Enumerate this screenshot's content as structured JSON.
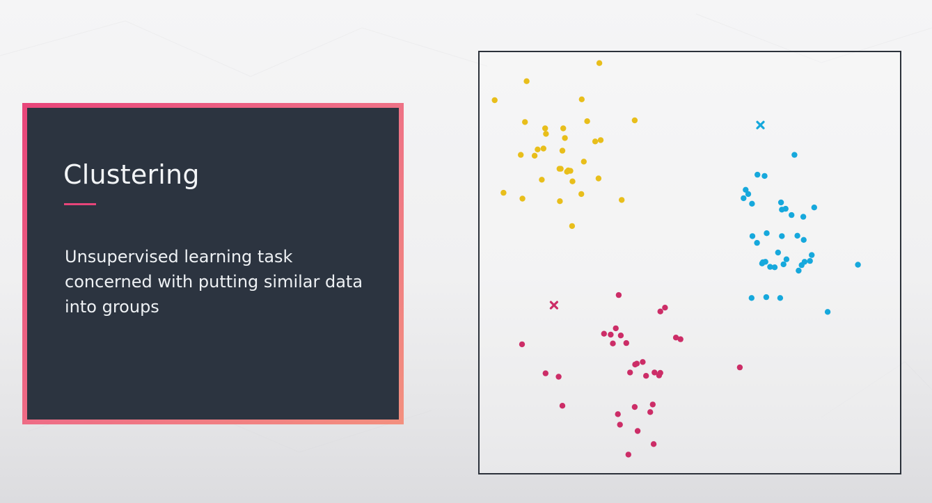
{
  "slide": {
    "title": "Clustering",
    "body": "Unsupervised learning task concerned with putting similar data into groups"
  },
  "colors": {
    "card_background": "#2c3440",
    "accent_pink": "#e7457a",
    "cluster_yellow": "#e8be1b",
    "cluster_blue": "#16a8dc",
    "cluster_magenta": "#cc2d67",
    "plot_border": "#2b313a"
  },
  "chart_data": {
    "type": "scatter",
    "title": "",
    "xlabel": "",
    "ylabel": "",
    "grid": false,
    "legend": "none",
    "xlim": [
      0,
      100
    ],
    "ylim": [
      0,
      100
    ],
    "series": [
      {
        "color": "#e8be1b",
        "x": [
          3.6,
          11.2,
          28.5,
          24.3,
          10.8,
          25.6,
          36.9,
          15.6,
          19.9,
          15.8,
          20.3,
          27.5,
          28.8,
          9.8,
          13.8,
          15.2,
          19.7,
          24.8,
          13.1,
          19.0,
          21.6,
          19.3,
          20.8,
          14.8,
          22.1,
          28.3,
          24.2,
          21.1,
          5.7,
          10.2,
          19.1,
          33.8,
          22.0
        ],
        "y": [
          88.6,
          93.1,
          97.4,
          88.8,
          83.4,
          83.6,
          83.8,
          81.9,
          81.9,
          80.6,
          79.6,
          78.8,
          79.1,
          75.6,
          76.9,
          77.1,
          76.6,
          74.0,
          75.4,
          72.3,
          71.8,
          72.3,
          71.6,
          69.7,
          69.3,
          70.0,
          66.3,
          71.9,
          66.6,
          65.2,
          64.6,
          64.9,
          58.7
        ]
      },
      {
        "color": "#16a8dc",
        "x": [
          74.9,
          66.1,
          67.8,
          63.3,
          62.8,
          63.9,
          64.8,
          71.7,
          72.8,
          71.9,
          74.2,
          77.0,
          79.6,
          68.3,
          71.9,
          75.6,
          77.1,
          64.9,
          66.0,
          71.0,
          79.0,
          73.0,
          77.3,
          67.2,
          69.1,
          70.2,
          75.9,
          76.6,
          78.6,
          72.3,
          67.4,
          68.0,
          64.7,
          68.2,
          71.5,
          82.8,
          90.0
        ],
        "y": [
          75.6,
          70.9,
          70.6,
          67.3,
          65.3,
          66.3,
          64.0,
          64.3,
          62.8,
          62.6,
          61.3,
          60.9,
          63.1,
          57.0,
          56.3,
          56.4,
          55.4,
          56.3,
          54.7,
          52.4,
          51.8,
          50.8,
          50.2,
          49.8,
          49.0,
          48.9,
          48.1,
          49.4,
          50.4,
          49.6,
          50.1,
          50.2,
          41.6,
          41.8,
          41.6,
          38.3,
          49.5
        ]
      },
      {
        "color": "#cc2d67",
        "x": [
          33.1,
          44.1,
          43.0,
          32.4,
          29.6,
          31.2,
          33.6,
          31.7,
          34.9,
          46.7,
          47.8,
          10.1,
          37.4,
          38.8,
          37.0,
          35.8,
          39.6,
          42.7,
          41.6,
          43.0,
          15.7,
          18.8,
          40.6,
          19.7,
          36.9,
          41.2,
          32.9,
          33.4,
          37.6,
          41.4,
          35.4,
          61.9
        ],
        "y": [
          42.3,
          39.3,
          38.4,
          34.4,
          33.1,
          32.9,
          32.7,
          30.8,
          30.9,
          32.2,
          31.8,
          30.6,
          26.0,
          26.4,
          25.8,
          23.9,
          23.1,
          23.2,
          23.9,
          23.8,
          23.7,
          22.9,
          14.5,
          16.0,
          15.7,
          16.3,
          14.0,
          11.5,
          10.0,
          6.9,
          4.4,
          25.1
        ]
      }
    ],
    "centroids": [
      {
        "x": 66.8,
        "y": 82.7,
        "color": "#16a8dc"
      },
      {
        "x": 17.7,
        "y": 39.9,
        "color": "#cc2d67"
      }
    ]
  }
}
